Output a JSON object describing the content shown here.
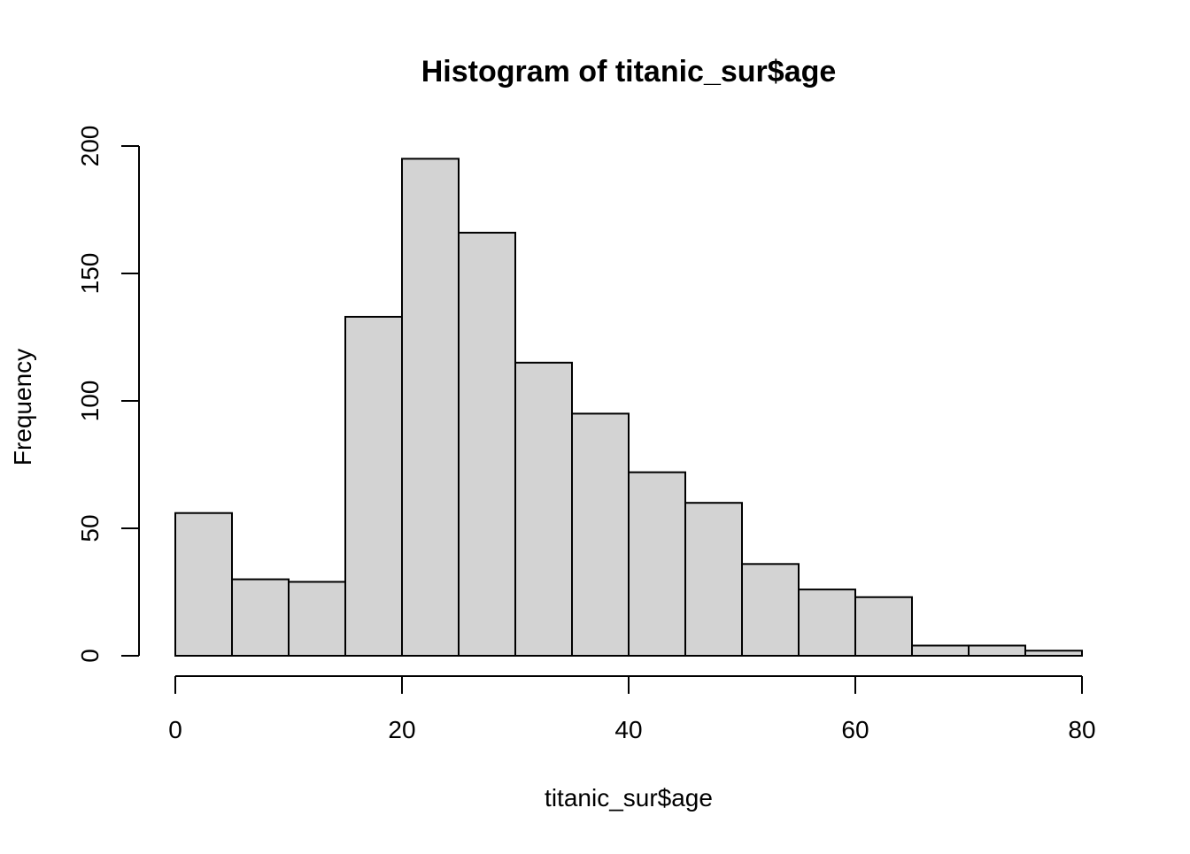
{
  "chart_data": {
    "type": "bar",
    "title": "Histogram of titanic_sur$age",
    "xlabel": "titanic_sur$age",
    "ylabel": "Frequency",
    "bins": [
      {
        "from": 0,
        "to": 5,
        "count": 56
      },
      {
        "from": 5,
        "to": 10,
        "count": 30
      },
      {
        "from": 10,
        "to": 15,
        "count": 29
      },
      {
        "from": 15,
        "to": 20,
        "count": 133
      },
      {
        "from": 20,
        "to": 25,
        "count": 195
      },
      {
        "from": 25,
        "to": 30,
        "count": 166
      },
      {
        "from": 30,
        "to": 35,
        "count": 115
      },
      {
        "from": 35,
        "to": 40,
        "count": 95
      },
      {
        "from": 40,
        "to": 45,
        "count": 72
      },
      {
        "from": 45,
        "to": 50,
        "count": 60
      },
      {
        "from": 50,
        "to": 55,
        "count": 36
      },
      {
        "from": 55,
        "to": 60,
        "count": 26
      },
      {
        "from": 60,
        "to": 65,
        "count": 23
      },
      {
        "from": 65,
        "to": 70,
        "count": 4
      },
      {
        "from": 70,
        "to": 75,
        "count": 4
      },
      {
        "from": 75,
        "to": 80,
        "count": 2
      }
    ],
    "xlim": [
      0,
      80
    ],
    "ylim": [
      0,
      200
    ],
    "x_ticks": [
      0,
      20,
      40,
      60,
      80
    ],
    "y_ticks": [
      0,
      50,
      100,
      150,
      200
    ],
    "grid": false,
    "colors": {
      "bar_fill": "#d3d3d3",
      "bar_stroke": "#000000",
      "axis": "#000000"
    }
  }
}
